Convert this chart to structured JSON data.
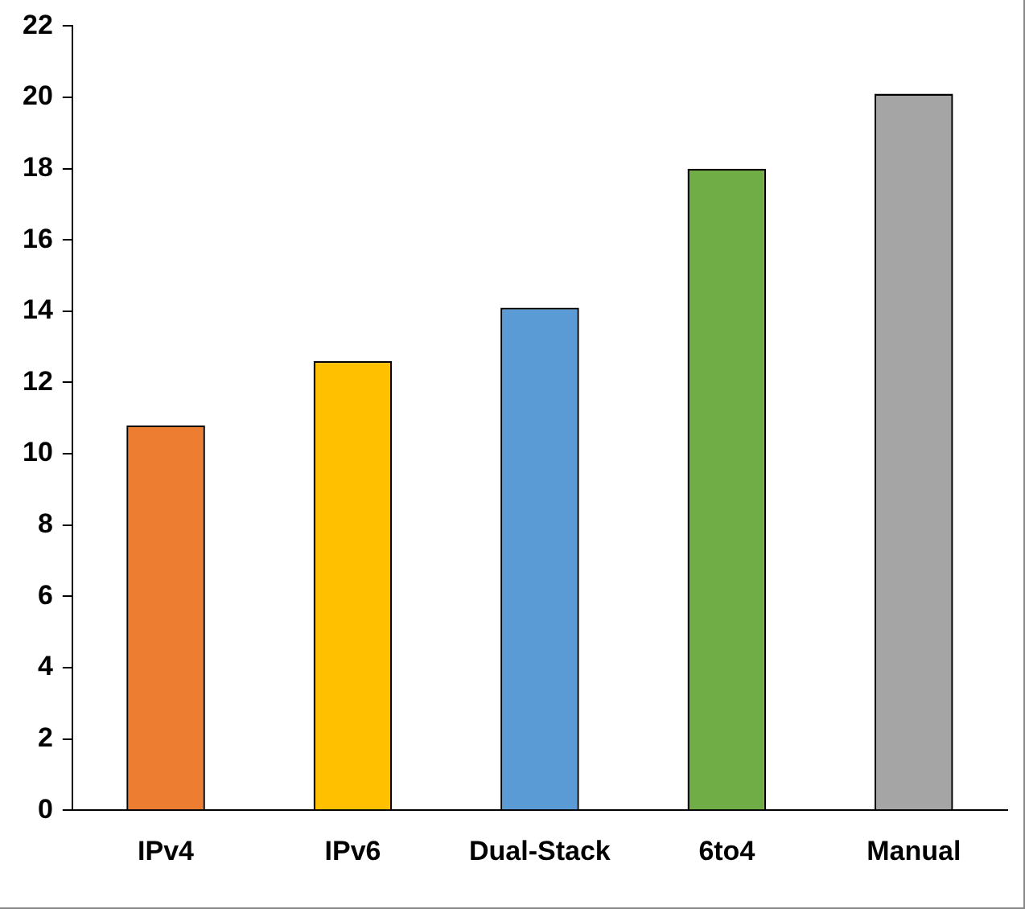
{
  "chart_data": {
    "type": "bar",
    "categories": [
      "IPv4",
      "IPv6",
      "Dual-Stack",
      "6to4",
      "Manual"
    ],
    "values": [
      10.8,
      12.6,
      14.1,
      18.0,
      20.1
    ],
    "colors": [
      "#ed7d31",
      "#ffc000",
      "#5b9bd5",
      "#70ad47",
      "#a5a5a5"
    ],
    "ylim": [
      0,
      22
    ],
    "yticks": [
      0,
      2,
      4,
      6,
      8,
      10,
      12,
      14,
      16,
      18,
      20,
      22
    ],
    "grid": false,
    "legend": false
  }
}
